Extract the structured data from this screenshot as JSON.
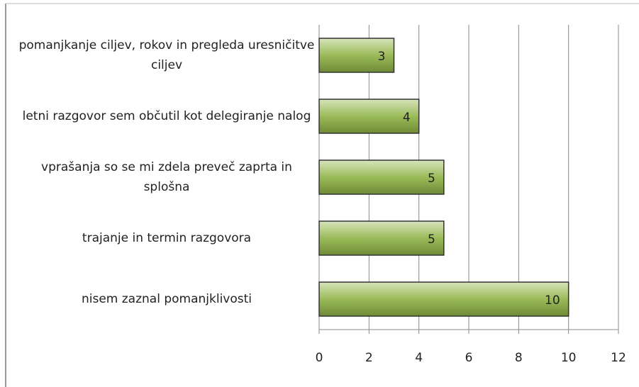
{
  "chart_data": {
    "type": "bar",
    "orientation": "horizontal",
    "categories": [
      "pomanjkanje ciljev, rokov in pregleda uresničitve ciljev",
      "letni razgovor sem občutil kot delegiranje nalog",
      "vprašanja so se mi zdela preveč zaprta in splošna",
      "trajanje in termin razgovora",
      "nisem zaznal pomanjklivosti"
    ],
    "values": [
      3,
      4,
      5,
      5,
      10
    ],
    "color": "#9bbb59",
    "xlim": [
      0,
      12
    ],
    "xticks": [
      0,
      2,
      4,
      6,
      8,
      10,
      12
    ],
    "grid": true
  }
}
